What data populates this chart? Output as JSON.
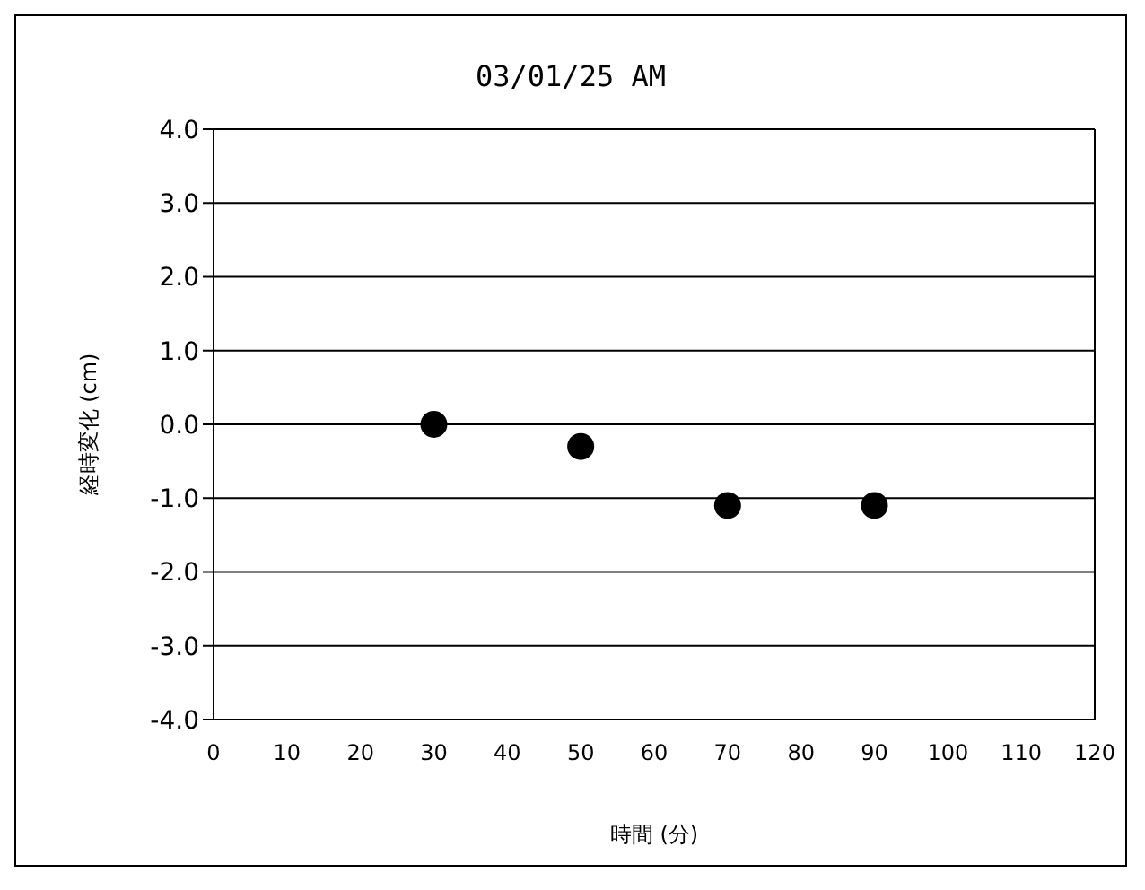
{
  "chart_data": {
    "type": "scatter",
    "title": "03/01/25 AM",
    "xlabel": "時間 (分)",
    "ylabel": "経時変化 (cm)",
    "x": [
      30,
      50,
      70,
      90
    ],
    "series": [
      {
        "color": "#000000",
        "values": [
          0.0,
          -0.3,
          -1.1,
          -1.1
        ]
      }
    ],
    "xlim": [
      0,
      120
    ],
    "xticks": [
      0,
      10,
      20,
      30,
      40,
      50,
      60,
      70,
      80,
      90,
      100,
      110,
      120
    ],
    "ylim": [
      -4,
      4
    ],
    "yticks": [
      {
        "value": -4,
        "label": "-4.0"
      },
      {
        "value": -3,
        "label": "-3.0"
      },
      {
        "value": -2,
        "label": "-2.0"
      },
      {
        "value": -1,
        "label": "-1.0"
      },
      {
        "value": 0,
        "label": "0.0"
      },
      {
        "value": 1,
        "label": "1.0"
      },
      {
        "value": 2,
        "label": "2.0"
      },
      {
        "value": 3,
        "label": "3.0"
      },
      {
        "value": 4,
        "label": "4.0"
      }
    ],
    "grid": "y",
    "marker": "circle"
  }
}
